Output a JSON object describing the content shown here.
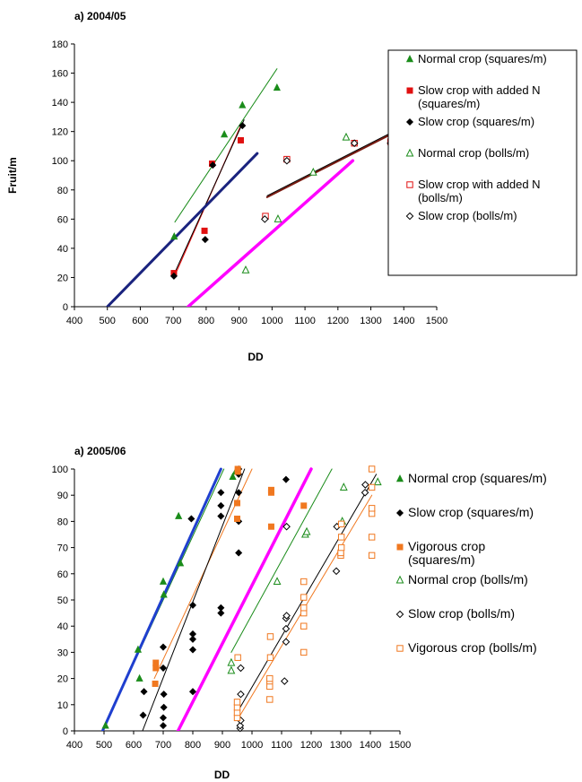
{
  "colors": {
    "normal": "#1a8c1a",
    "slowN": "#e01010",
    "slow": "#000000",
    "vigorous": "#f07820",
    "blue": "#1f3fcf",
    "navy": "#1a237e",
    "magenta": "#ff00ff",
    "brown": "#7a1a10"
  },
  "chart_data": [
    {
      "type": "scatter",
      "title": "a) 2004/05",
      "xlabel": "DD",
      "ylabel": "Fruit/m",
      "xlim": [
        400,
        1500
      ],
      "ylim": [
        0,
        180
      ],
      "xticks": [
        "400",
        "500",
        "600",
        "700",
        "800",
        "900",
        "1000",
        "1100",
        "1200",
        "1300",
        "1400",
        "1500"
      ],
      "yticks": [
        "0",
        "20",
        "40",
        "60",
        "80",
        "100",
        "120",
        "140",
        "160",
        "180"
      ],
      "series": [
        {
          "name": "Normal crop (squares/m)",
          "marker": "tri-filled",
          "color": "normal",
          "points": [
            [
              703,
              48
            ],
            [
              855,
              118
            ],
            [
              910,
              138
            ],
            [
              1015,
              150
            ]
          ]
        },
        {
          "name": "Slow crop with added N (squares/m)",
          "marker": "sq-filled",
          "color": "slowN",
          "points": [
            [
              702,
              23
            ],
            [
              795,
              52
            ],
            [
              818,
              98
            ],
            [
              905,
              114
            ]
          ]
        },
        {
          "name": "Slow crop (squares/m)",
          "marker": "dia-filled",
          "color": "slow",
          "points": [
            [
              702,
              21
            ],
            [
              797,
              46
            ],
            [
              820,
              97
            ],
            [
              910,
              124
            ]
          ]
        },
        {
          "name": "Normal crop (bolls/m)",
          "marker": "tri-open",
          "color": "normal",
          "points": [
            [
              920,
              25
            ],
            [
              1018,
              60
            ],
            [
              1125,
              92
            ],
            [
              1225,
              116
            ]
          ]
        },
        {
          "name": "Slow crop with added N (bolls/m)",
          "marker": "sq-open",
          "color": "slowN",
          "points": [
            [
              980,
              62
            ],
            [
              1045,
              101
            ],
            [
              1250,
              112
            ],
            [
              1360,
              113
            ]
          ]
        },
        {
          "name": "Slow crop (bolls/m)",
          "marker": "dia-open",
          "color": "slow",
          "points": [
            [
              978,
              60
            ],
            [
              1045,
              100
            ],
            [
              1250,
              112
            ],
            [
              1360,
              112
            ]
          ]
        }
      ],
      "lines": [
        {
          "color": "normal",
          "width": 1,
          "from": [
            705,
            58
          ],
          "to": [
            1015,
            163
          ]
        },
        {
          "color": "slowN",
          "width": 1.2,
          "from": [
            702,
            20
          ],
          "to": [
            905,
            124
          ]
        },
        {
          "color": "slow",
          "width": 1,
          "from": [
            702,
            22
          ],
          "to": [
            915,
            128
          ]
        },
        {
          "color": "navy",
          "width": 3,
          "from": [
            500,
            0
          ],
          "to": [
            955,
            105
          ]
        },
        {
          "color": "magenta",
          "width": 3.5,
          "from": [
            745,
            0
          ],
          "to": [
            1245,
            100
          ]
        },
        {
          "color": "brown",
          "width": 2,
          "from": [
            985,
            75
          ],
          "to": [
            1360,
            118
          ]
        },
        {
          "color": "slow",
          "width": 1,
          "from": [
            985,
            76
          ],
          "to": [
            1360,
            119
          ]
        }
      ],
      "legend": {
        "position": "right",
        "items": [
          {
            "marker": "tri-filled",
            "color": "normal",
            "lines": [
              "Normal crop (squares/m)"
            ]
          },
          {
            "marker": "sq-filled",
            "color": "slowN",
            "lines": [
              "Slow crop with added N",
              "(squares/m)"
            ]
          },
          {
            "marker": "dia-filled",
            "color": "slow",
            "lines": [
              "Slow crop (squares/m)"
            ]
          },
          {
            "marker": "tri-open",
            "color": "normal",
            "lines": [
              "Normal crop (bolls/m)"
            ]
          },
          {
            "marker": "sq-open",
            "color": "slowN",
            "lines": [
              "Slow crop with added N",
              "(bolls/m)"
            ]
          },
          {
            "marker": "dia-open",
            "color": "slow",
            "lines": [
              "Slow crop (bolls/m)"
            ]
          }
        ]
      }
    },
    {
      "type": "scatter",
      "title": "a) 2005/06",
      "xlabel": "DD",
      "ylabel": "",
      "xlim": [
        400,
        1500
      ],
      "ylim": [
        0,
        100
      ],
      "xticks": [
        "400",
        "500",
        "600",
        "700",
        "800",
        "900",
        "1000",
        "1100",
        "1200",
        "1300",
        "1400",
        "1500"
      ],
      "yticks": [
        "0",
        "10",
        "20",
        "30",
        "40",
        "50",
        "60",
        "70",
        "80",
        "90",
        "100"
      ],
      "series": [
        {
          "name": "Normal crop (squares/m)",
          "marker": "tri-filled",
          "color": "normal",
          "points": [
            [
              505,
              2
            ],
            [
              615,
              31
            ],
            [
              620,
              20
            ],
            [
              700,
              57
            ],
            [
              702,
              52
            ],
            [
              752,
              82
            ],
            [
              758,
              64
            ],
            [
              935,
              97
            ],
            [
              945,
              99
            ]
          ]
        },
        {
          "name": "Slow crop (squares/m)",
          "marker": "dia-filled",
          "color": "slow",
          "points": [
            [
              632,
              6
            ],
            [
              635,
              15
            ],
            [
              700,
              2
            ],
            [
              700,
              5
            ],
            [
              702,
              9
            ],
            [
              702,
              14
            ],
            [
              700,
              24
            ],
            [
              700,
              32
            ],
            [
              795,
              81
            ],
            [
              800,
              15
            ],
            [
              800,
              31
            ],
            [
              800,
              35
            ],
            [
              800,
              37
            ],
            [
              800,
              48
            ],
            [
              895,
              45
            ],
            [
              895,
              47
            ],
            [
              895,
              82
            ],
            [
              895,
              86
            ],
            [
              895,
              91
            ],
            [
              955,
              68
            ],
            [
              955,
              80
            ],
            [
              955,
              91
            ],
            [
              955,
              98
            ],
            [
              955,
              100
            ],
            [
              1115,
              96
            ]
          ]
        },
        {
          "name": "Vigorous crop (squares/m)",
          "marker": "sq-filled",
          "color": "vigorous",
          "points": [
            [
              673,
              18
            ],
            [
              675,
              24
            ],
            [
              675,
              26
            ],
            [
              950,
              87
            ],
            [
              950,
              81
            ],
            [
              952,
              99
            ],
            [
              952,
              100
            ],
            [
              1065,
              78
            ],
            [
              1065,
              91
            ],
            [
              1065,
              92
            ],
            [
              1175,
              86
            ]
          ]
        },
        {
          "name": "Normal crop (bolls/m)",
          "marker": "tri-open",
          "color": "normal",
          "points": [
            [
              930,
              23
            ],
            [
              930,
              26
            ],
            [
              1085,
              57
            ],
            [
              1180,
              75
            ],
            [
              1185,
              76
            ],
            [
              1305,
              80
            ],
            [
              1310,
              93
            ],
            [
              1425,
              95
            ]
          ]
        },
        {
          "name": "Slow crop (bolls/m)",
          "marker": "dia-open",
          "color": "slow",
          "points": [
            [
              960,
              1
            ],
            [
              960,
              2
            ],
            [
              962,
              4
            ],
            [
              962,
              14
            ],
            [
              962,
              24
            ],
            [
              1110,
              19
            ],
            [
              1115,
              34
            ],
            [
              1115,
              39
            ],
            [
              1115,
              43
            ],
            [
              1117,
              44
            ],
            [
              1117,
              78
            ],
            [
              1285,
              61
            ],
            [
              1287,
              78
            ],
            [
              1382,
              91
            ],
            [
              1383,
              94
            ]
          ]
        },
        {
          "name": "Vigorous crop (bolls/m)",
          "marker": "sq-open",
          "color": "vigorous",
          "points": [
            [
              950,
              5
            ],
            [
              950,
              7
            ],
            [
              950,
              9
            ],
            [
              950,
              11
            ],
            [
              952,
              28
            ],
            [
              1060,
              12
            ],
            [
              1060,
              17
            ],
            [
              1060,
              19
            ],
            [
              1060,
              20
            ],
            [
              1062,
              28
            ],
            [
              1062,
              36
            ],
            [
              1175,
              30
            ],
            [
              1175,
              40
            ],
            [
              1175,
              45
            ],
            [
              1175,
              47
            ],
            [
              1175,
              51
            ],
            [
              1175,
              57
            ],
            [
              1300,
              67
            ],
            [
              1300,
              68
            ],
            [
              1302,
              70
            ],
            [
              1302,
              74
            ],
            [
              1302,
              79
            ],
            [
              1405,
              67
            ],
            [
              1405,
              74
            ],
            [
              1405,
              83
            ],
            [
              1405,
              85
            ],
            [
              1405,
              93
            ],
            [
              1405,
              100
            ]
          ]
        }
      ],
      "lines": [
        {
          "color": "normal",
          "width": 1,
          "from": [
            495,
            0
          ],
          "to": [
            905,
            100
          ]
        },
        {
          "color": "blue",
          "width": 3,
          "from": [
            495,
            0
          ],
          "to": [
            895,
            100
          ]
        },
        {
          "color": "vigorous",
          "width": 1,
          "from": [
            670,
            20
          ],
          "to": [
            1000,
            100
          ]
        },
        {
          "color": "slow",
          "width": 1,
          "from": [
            630,
            0
          ],
          "to": [
            975,
            100
          ]
        },
        {
          "color": "magenta",
          "width": 3.5,
          "from": [
            750,
            0
          ],
          "to": [
            1200,
            100
          ]
        },
        {
          "color": "normal",
          "width": 1,
          "from": [
            930,
            30
          ],
          "to": [
            1270,
            100
          ]
        },
        {
          "color": "slow",
          "width": 1,
          "from": [
            955,
            8
          ],
          "to": [
            1420,
            98
          ]
        },
        {
          "color": "vigorous",
          "width": 1,
          "from": [
            955,
            5
          ],
          "to": [
            1405,
            90
          ]
        }
      ],
      "legend": {
        "position": "right",
        "items": [
          {
            "marker": "tri-filled",
            "color": "normal",
            "lines": [
              "Normal crop (squares/m)"
            ]
          },
          {
            "marker": "dia-filled",
            "color": "slow",
            "lines": [
              "Slow crop (squares/m)"
            ]
          },
          {
            "marker": "sq-filled",
            "color": "vigorous",
            "lines": [
              "Vigorous crop",
              "(squares/m)"
            ]
          },
          {
            "marker": "tri-open",
            "color": "normal",
            "lines": [
              "Normal crop (bolls/m)"
            ]
          },
          {
            "marker": "dia-open",
            "color": "slow",
            "lines": [
              "Slow crop (bolls/m)"
            ]
          },
          {
            "marker": "sq-open",
            "color": "vigorous",
            "lines": [
              "Vigorous crop (bolls/m)"
            ]
          }
        ]
      }
    }
  ]
}
